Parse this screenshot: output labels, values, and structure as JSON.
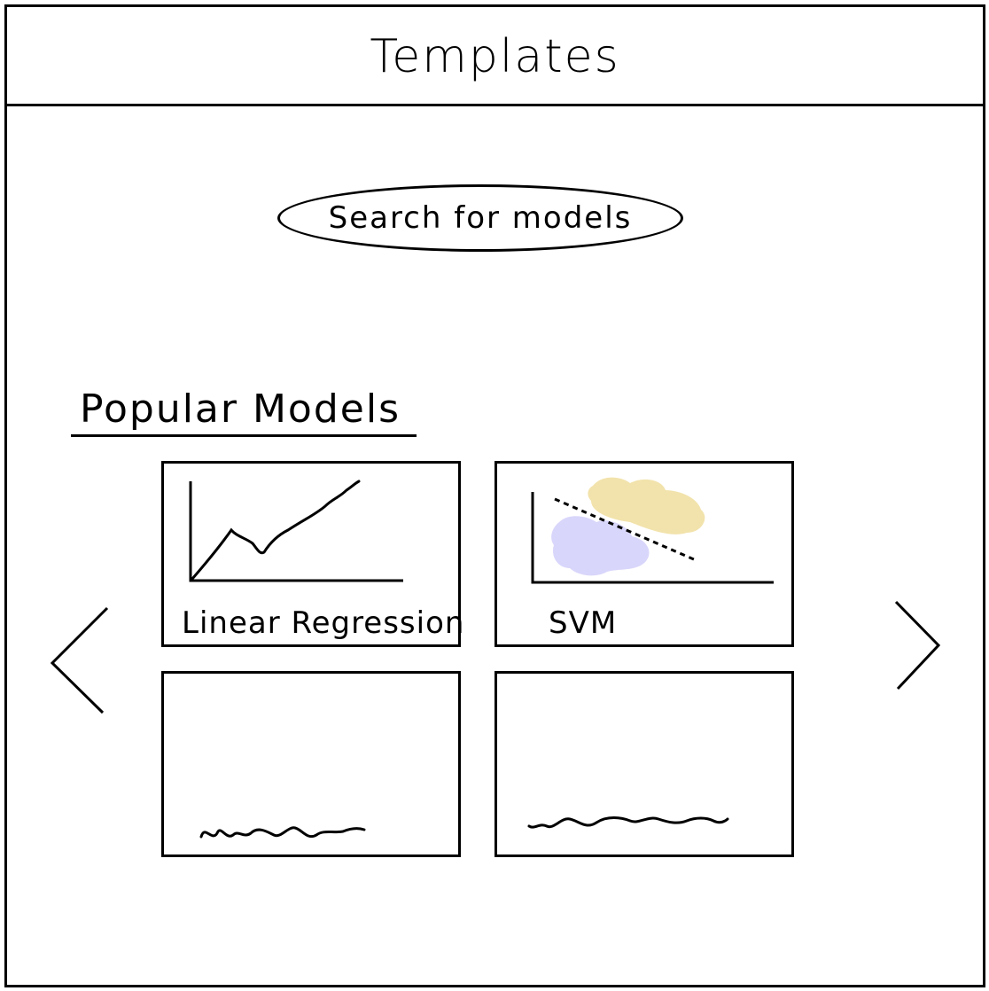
{
  "header": {
    "title": "Templates"
  },
  "search": {
    "label": "Search for models"
  },
  "popular": {
    "title": "Popular Models",
    "cards": [
      {
        "label": "Linear Regression",
        "thumbnail_icon": "line-chart-icon"
      },
      {
        "label": "SVM",
        "thumbnail_icon": "scatter-separator-icon"
      },
      {
        "label": "",
        "thumbnail_icon": "placeholder-squiggle"
      },
      {
        "label": "",
        "thumbnail_icon": "placeholder-squiggle"
      }
    ]
  },
  "nav": {
    "prev_icon": "chevron-left-icon",
    "next_icon": "chevron-right-icon"
  },
  "colors": {
    "cluster_yellow": "#f2e3ac",
    "cluster_purple": "#d9d6fb",
    "ink": "#000000"
  }
}
